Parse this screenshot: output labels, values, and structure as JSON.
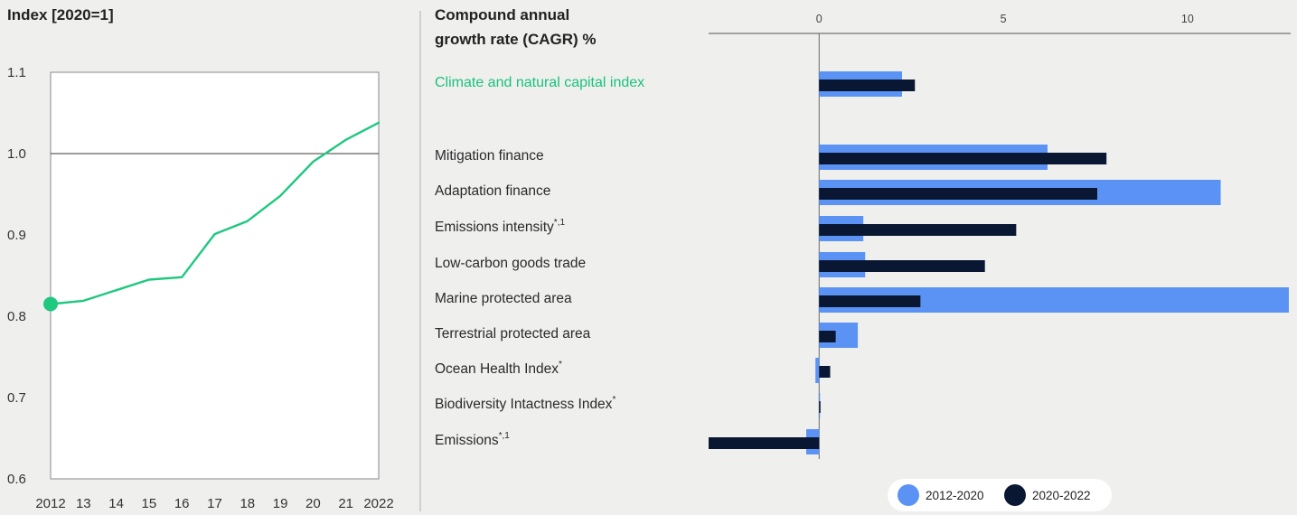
{
  "colors": {
    "line": "#1ec87f",
    "series_2012_2020": "#5b93f4",
    "series_2020_2022": "#0a1733",
    "highlight_label": "#19c37d"
  },
  "chart_data": [
    {
      "type": "line",
      "title": "Index [2020=1]",
      "x_tick_labels": [
        "2012",
        "13",
        "14",
        "15",
        "16",
        "17",
        "18",
        "19",
        "20",
        "21",
        "2022"
      ],
      "x": [
        2012,
        2013,
        2014,
        2015,
        2016,
        2017,
        2018,
        2019,
        2020,
        2021,
        2022
      ],
      "values": [
        0.815,
        0.819,
        0.832,
        0.845,
        0.848,
        0.901,
        0.917,
        0.948,
        0.99,
        1.017,
        1.038
      ],
      "ylim": [
        0.6,
        1.1
      ],
      "y_ticks": [
        {
          "value": 1.1,
          "label": "1.1"
        },
        {
          "value": 1.0,
          "label": "1.0"
        },
        {
          "value": 0.9,
          "label": "0.9"
        },
        {
          "value": 0.8,
          "label": "0.8"
        },
        {
          "value": 0.7,
          "label": "0.7"
        },
        {
          "value": 0.6,
          "label": "0.6"
        }
      ],
      "reference_line": 1.0,
      "start_marker": true
    },
    {
      "type": "bar",
      "orientation": "horizontal",
      "title": "Compound annual growth rate (CAGR) %",
      "title_lines": [
        "Compound annual",
        "growth rate (CAGR) %"
      ],
      "x_ticks": [
        {
          "value": 0,
          "label": "0"
        },
        {
          "value": 5,
          "label": "5"
        },
        {
          "value": 10,
          "label": "10"
        }
      ],
      "xlim": [
        -3,
        12.8
      ],
      "legend_position": "bottom",
      "series": [
        {
          "name": "2012-2020",
          "color": "#5b93f4"
        },
        {
          "name": "2020-2022",
          "color": "#0a1733"
        }
      ],
      "categories": [
        {
          "label": "Climate and natural capital index",
          "highlight": true,
          "values": [
            2.25,
            2.6
          ]
        },
        {
          "label": "Mitigation finance",
          "values": [
            6.2,
            7.8
          ]
        },
        {
          "label": "Adaptation finance",
          "values": [
            10.9,
            7.55
          ]
        },
        {
          "label": "Emissions intensity",
          "sup": "*,1",
          "values": [
            1.2,
            5.35
          ]
        },
        {
          "label": "Low-carbon goods trade",
          "values": [
            1.25,
            4.5
          ]
        },
        {
          "label": "Marine protected area",
          "values": [
            12.75,
            2.75
          ]
        },
        {
          "label": "Terrestrial protected area",
          "values": [
            1.05,
            0.45
          ]
        },
        {
          "label": "Ocean Health Index",
          "sup": "*",
          "values": [
            -0.1,
            0.3
          ]
        },
        {
          "label": "Biodiversity Intactness Index",
          "sup": "*",
          "values": [
            0.0,
            0.02
          ]
        },
        {
          "label": "Emissions",
          "sup": "*,1",
          "values": [
            -0.35,
            -3.0
          ]
        }
      ]
    }
  ]
}
